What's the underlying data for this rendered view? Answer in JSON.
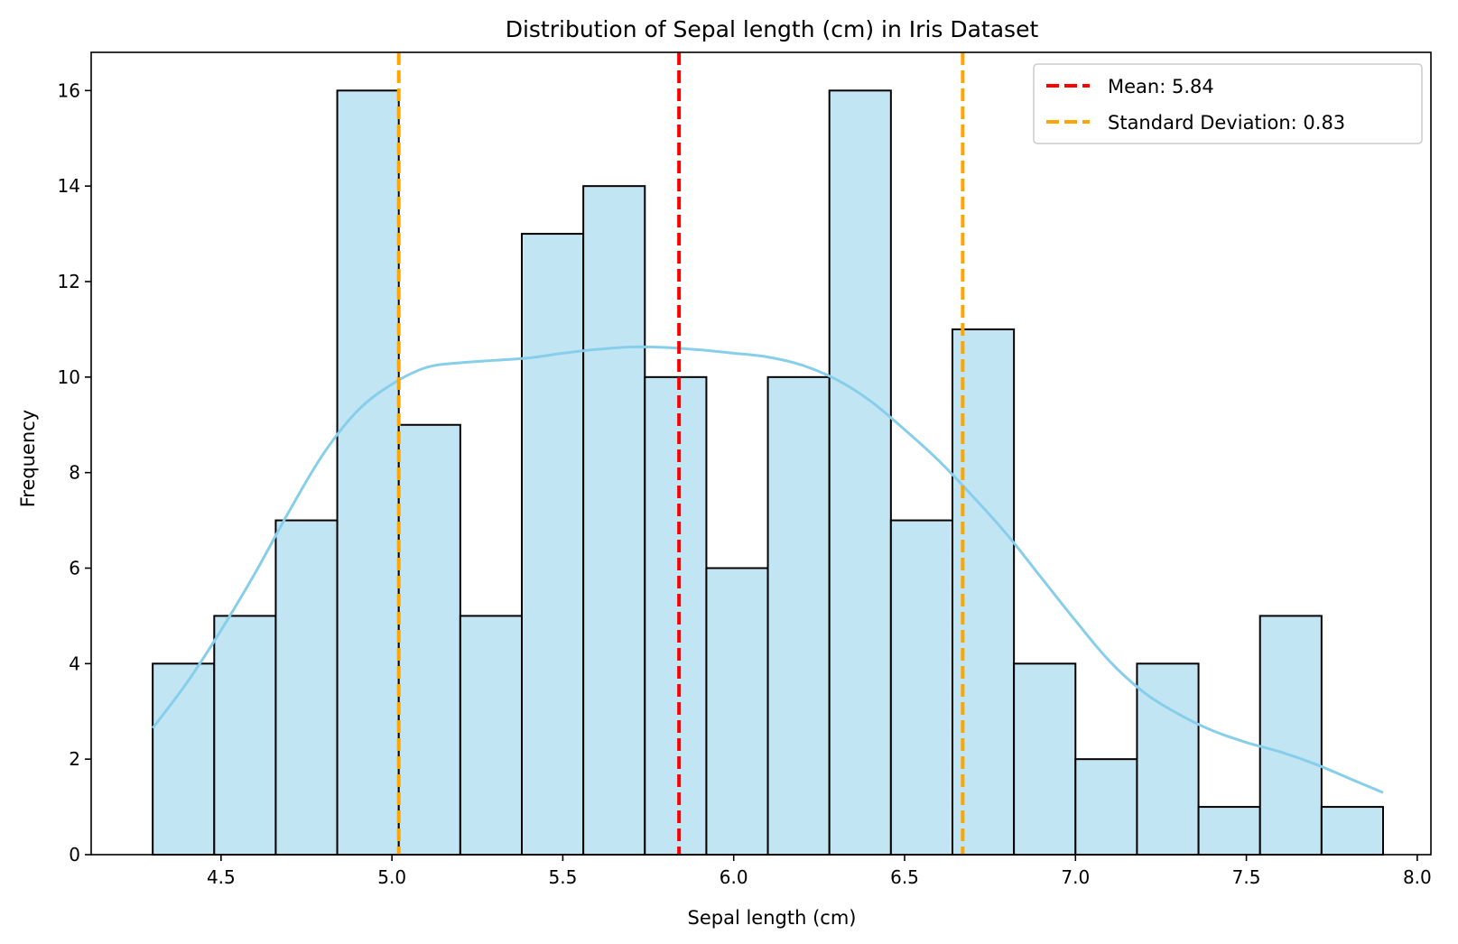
{
  "chart_data": {
    "type": "bar",
    "title": "Distribution of Sepal length (cm) in Iris Dataset",
    "xlabel": "Sepal length (cm)",
    "ylabel": "Frequency",
    "xlim": [
      4.12,
      8.04
    ],
    "ylim": [
      0,
      16.8
    ],
    "xticks": [
      4.5,
      5.0,
      5.5,
      6.0,
      6.5,
      7.0,
      7.5,
      8.0
    ],
    "xtick_labels": [
      "4.5",
      "5.0",
      "5.5",
      "6.0",
      "6.5",
      "7.0",
      "7.5",
      "8.0"
    ],
    "yticks": [
      0,
      2,
      4,
      6,
      8,
      10,
      12,
      14,
      16
    ],
    "ytick_labels": [
      "0",
      "2",
      "4",
      "6",
      "8",
      "10",
      "12",
      "14",
      "16"
    ],
    "bin_start": 4.3,
    "bin_width": 0.18,
    "values": [
      4,
      5,
      7,
      16,
      9,
      5,
      13,
      14,
      10,
      6,
      10,
      16,
      7,
      11,
      4,
      2,
      4,
      1,
      5,
      1
    ],
    "kde": {
      "x": [
        4.3,
        4.4,
        4.5,
        4.6,
        4.7,
        4.8,
        4.9,
        5.0,
        5.1,
        5.2,
        5.3,
        5.4,
        5.5,
        5.6,
        5.7,
        5.8,
        5.9,
        6.0,
        6.1,
        6.2,
        6.3,
        6.4,
        6.5,
        6.6,
        6.7,
        6.8,
        6.9,
        7.0,
        7.1,
        7.2,
        7.3,
        7.4,
        7.5,
        7.6,
        7.7,
        7.8,
        7.9
      ],
      "y": [
        2.65,
        3.6,
        4.7,
        5.9,
        7.2,
        8.4,
        9.3,
        9.85,
        10.2,
        10.3,
        10.35,
        10.4,
        10.5,
        10.58,
        10.63,
        10.62,
        10.57,
        10.5,
        10.42,
        10.25,
        9.95,
        9.5,
        8.9,
        8.25,
        7.5,
        6.7,
        5.8,
        4.9,
        4.05,
        3.4,
        2.95,
        2.6,
        2.35,
        2.15,
        1.9,
        1.6,
        1.3
      ]
    },
    "vlines": [
      {
        "x": 5.84,
        "color": "#ff0000",
        "label": "Mean: 5.84"
      },
      {
        "x": 5.02,
        "color": "#ffa500",
        "label": "Standard Deviation: 0.83"
      },
      {
        "x": 6.67,
        "color": "#ffa500",
        "label": ""
      }
    ],
    "legend": [
      {
        "label": "Mean: 5.84",
        "color": "#ff0000"
      },
      {
        "label": "Standard Deviation: 0.83",
        "color": "#ffa500"
      }
    ],
    "legend_position": "top-right",
    "grid": false,
    "colors": {
      "bar_fill": "#c2e5f4",
      "bar_edge": "#000000",
      "kde": "#87ceeb"
    }
  }
}
